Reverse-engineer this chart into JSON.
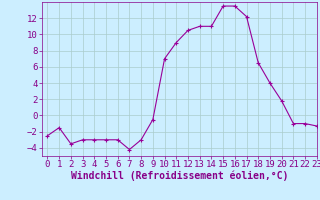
{
  "x": [
    0,
    1,
    2,
    3,
    4,
    5,
    6,
    7,
    8,
    9,
    10,
    11,
    12,
    13,
    14,
    15,
    16,
    17,
    18,
    19,
    20,
    21,
    22,
    23
  ],
  "y": [
    -2.5,
    -1.5,
    -3.5,
    -3.0,
    -3.0,
    -3.0,
    -3.0,
    -4.2,
    -3.0,
    -0.5,
    7.0,
    9.0,
    10.5,
    11.0,
    11.0,
    13.5,
    13.5,
    12.2,
    6.5,
    4.0,
    1.8,
    -1.0,
    -1.0,
    -1.3
  ],
  "xlabel": "Windchill (Refroidissement éolien,°C)",
  "ylim": [
    -5,
    14
  ],
  "xlim": [
    -0.5,
    23
  ],
  "yticks": [
    -4,
    -2,
    0,
    2,
    4,
    6,
    8,
    10,
    12
  ],
  "xticks": [
    0,
    1,
    2,
    3,
    4,
    5,
    6,
    7,
    8,
    9,
    10,
    11,
    12,
    13,
    14,
    15,
    16,
    17,
    18,
    19,
    20,
    21,
    22,
    23
  ],
  "line_color": "#990099",
  "marker": "+",
  "bg_color": "#cceeff",
  "grid_color": "#aacccc",
  "text_color": "#880088",
  "xlabel_fontsize": 7,
  "tick_fontsize": 6.5,
  "figsize": [
    3.2,
    2.0
  ],
  "dpi": 100
}
